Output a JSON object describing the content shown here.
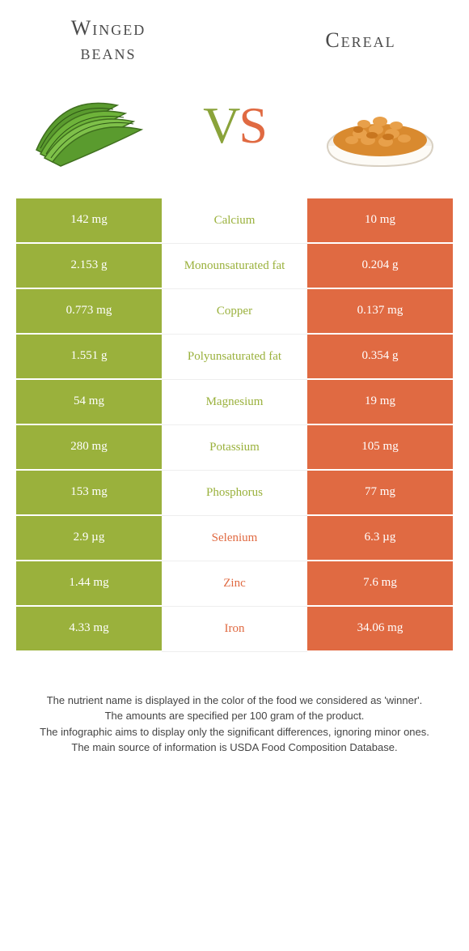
{
  "left_food": {
    "title": "Winged\nbeans",
    "color": "#9ab13c"
  },
  "right_food": {
    "title": "Cereal",
    "color": "#e06a42"
  },
  "vs": {
    "v": "V",
    "s": "S"
  },
  "rows": [
    {
      "left": "142 mg",
      "label": "Calcium",
      "right": "10 mg",
      "winner": "left"
    },
    {
      "left": "2.153 g",
      "label": "Monounsaturated fat",
      "right": "0.204 g",
      "winner": "left"
    },
    {
      "left": "0.773 mg",
      "label": "Copper",
      "right": "0.137 mg",
      "winner": "left"
    },
    {
      "left": "1.551 g",
      "label": "Polyunsaturated fat",
      "right": "0.354 g",
      "winner": "left"
    },
    {
      "left": "54 mg",
      "label": "Magnesium",
      "right": "19 mg",
      "winner": "left"
    },
    {
      "left": "280 mg",
      "label": "Potassium",
      "right": "105 mg",
      "winner": "left"
    },
    {
      "left": "153 mg",
      "label": "Phosphorus",
      "right": "77 mg",
      "winner": "left"
    },
    {
      "left": "2.9 µg",
      "label": "Selenium",
      "right": "6.3 µg",
      "winner": "right"
    },
    {
      "left": "1.44 mg",
      "label": "Zinc",
      "right": "7.6 mg",
      "winner": "right"
    },
    {
      "left": "4.33 mg",
      "label": "Iron",
      "right": "34.06 mg",
      "winner": "right"
    }
  ],
  "footer": {
    "line1": "The nutrient name is displayed in the color of the food we considered as 'winner'.",
    "line2": "The amounts are specified per 100 gram of the product.",
    "line3": "The infographic aims to display only the significant differences, ignoring minor ones.",
    "line4": "The main source of information is USDA Food Composition Database."
  }
}
